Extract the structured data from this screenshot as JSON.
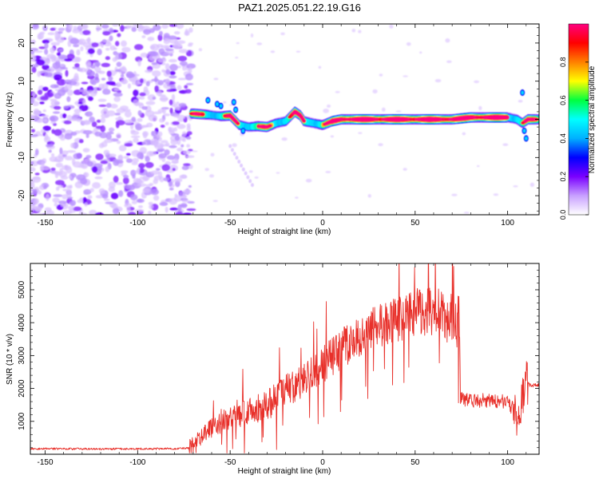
{
  "figure": {
    "title": "PAZ1.2025.051.22.19.G16"
  },
  "chart_data": [
    {
      "type": "heatmap",
      "xlabel": "Height of straight line (km)",
      "ylabel": "Frequency (Hz)",
      "xlim": [
        -158,
        117
      ],
      "ylim": [
        -25,
        25
      ],
      "xticks": [
        -150,
        -100,
        -50,
        0,
        50,
        100
      ],
      "yticks": [
        -20,
        -10,
        0,
        10,
        20
      ],
      "colorbar": {
        "label": "Normalized spectral amplitude",
        "range": [
          0,
          1
        ],
        "ticks": [
          "0.0",
          "0.2",
          "0.4",
          "0.6",
          "0.8"
        ],
        "colormap": [
          "#ffffff",
          "#c8a0ff",
          "#7a00ff",
          "#0000ff",
          "#00b0ff",
          "#00ffff",
          "#00ff40",
          "#ffff00",
          "#ff8000",
          "#ff0000",
          "#ff0080"
        ]
      },
      "features": {
        "noise_region_x": [
          -158,
          -71
        ],
        "signal_ridge": [
          [
            -70,
            1.5
          ],
          [
            -62,
            1.2
          ],
          [
            -55,
            0.8
          ],
          [
            -50,
            1.0
          ],
          [
            -45,
            -1.5
          ],
          [
            -40,
            -2.0
          ],
          [
            -35,
            -1.8
          ],
          [
            -30,
            -2.0
          ],
          [
            -25,
            -1.0
          ],
          [
            -20,
            -0.5
          ],
          [
            -15,
            2.0
          ],
          [
            -12,
            1.0
          ],
          [
            -10,
            -0.5
          ],
          [
            -5,
            -1.0
          ],
          [
            0,
            -1.5
          ],
          [
            5,
            -0.5
          ],
          [
            10,
            0.0
          ],
          [
            20,
            0.0
          ],
          [
            30,
            0.0
          ],
          [
            40,
            0.0
          ],
          [
            50,
            0.0
          ],
          [
            60,
            0.0
          ],
          [
            70,
            0.0
          ],
          [
            80,
            0.5
          ],
          [
            90,
            0.5
          ],
          [
            100,
            0.5
          ],
          [
            105,
            0.0
          ],
          [
            108,
            -1.0
          ],
          [
            111,
            0.0
          ],
          [
            117,
            0.0
          ]
        ]
      }
    },
    {
      "type": "line",
      "xlabel": "Height of straight line (km)",
      "ylabel": "SNR (10 * v/v)",
      "xlim": [
        -158,
        117
      ],
      "ylim": [
        0,
        5800
      ],
      "xticks": [
        -150,
        -100,
        -50,
        0,
        50,
        100
      ],
      "yticks": [
        1000,
        2000,
        3000,
        4000,
        5000
      ],
      "series": [
        {
          "color": "#e8302a",
          "trend": [
            [
              -158,
              170
            ],
            [
              -120,
              160
            ],
            [
              -80,
              170
            ],
            [
              -72,
              190
            ],
            [
              -68,
              350
            ],
            [
              -62,
              700
            ],
            [
              -55,
              1000
            ],
            [
              -50,
              1200
            ],
            [
              -40,
              1300
            ],
            [
              -30,
              1500
            ],
            [
              -20,
              1900
            ],
            [
              -10,
              2300
            ],
            [
              0,
              2700
            ],
            [
              10,
              3200
            ],
            [
              20,
              3600
            ],
            [
              30,
              3900
            ],
            [
              40,
              4100
            ],
            [
              50,
              4300
            ],
            [
              60,
              4400
            ],
            [
              66,
              4200
            ],
            [
              70,
              4100
            ],
            [
              74,
              4000
            ],
            [
              74.5,
              1700
            ],
            [
              80,
              1600
            ],
            [
              90,
              1650
            ],
            [
              100,
              1600
            ],
            [
              104,
              1300
            ],
            [
              106,
              900
            ],
            [
              108,
              1800
            ],
            [
              110,
              2200
            ],
            [
              112,
              2100
            ],
            [
              117,
              2100
            ]
          ]
        }
      ]
    }
  ]
}
